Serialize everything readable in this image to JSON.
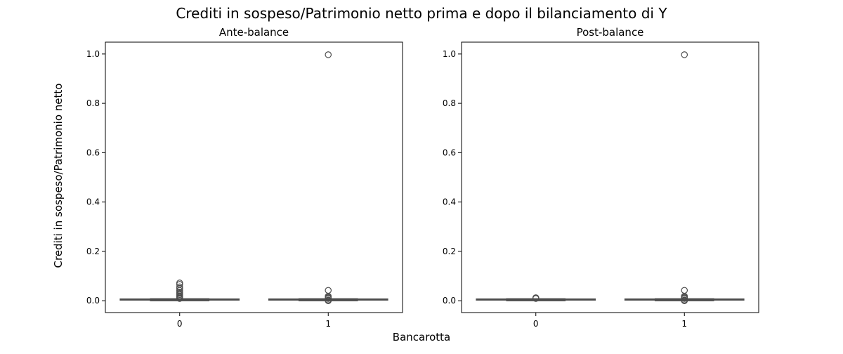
{
  "figure": {
    "title": "Crediti in sospeso/Patrimonio netto prima e dopo il bilanciamento di Y",
    "xlabel": "Bancarotta",
    "ylabel": "Crediti in sospeso/Patrimonio netto"
  },
  "chart_data": [
    {
      "type": "box",
      "title": "Ante-balance",
      "xlabel": "Bancarotta",
      "ylabel": "Crediti in sospeso/Patrimonio netto",
      "categories": [
        "0",
        "1"
      ],
      "ylim": [
        -0.048,
        1.048
      ],
      "yticks": [
        0.0,
        0.2,
        0.4,
        0.6,
        0.8,
        1.0
      ],
      "ytick_labels": [
        "0.0",
        "0.2",
        "0.4",
        "0.6",
        "0.8",
        "1.0"
      ],
      "grid": false,
      "boxes": [
        {
          "category": "0",
          "whisker_low": 0.0,
          "q1": 0.005,
          "median": 0.006,
          "q3": 0.007,
          "whisker_high": 0.008,
          "outliers": [
            0.072,
            0.066,
            0.056,
            0.05,
            0.042,
            0.035,
            0.03,
            0.025,
            0.02,
            0.016,
            0.012,
            0.009
          ]
        },
        {
          "category": "1",
          "whisker_low": 0.0,
          "q1": 0.005,
          "median": 0.006,
          "q3": 0.007,
          "whisker_high": 0.008,
          "outliers": [
            0.997,
            0.042,
            0.018,
            0.014,
            0.011,
            0.009,
            0.003,
            0.001,
            0.0
          ]
        }
      ]
    },
    {
      "type": "box",
      "title": "Post-balance",
      "xlabel": "Bancarotta",
      "ylabel": "",
      "categories": [
        "0",
        "1"
      ],
      "ylim": [
        -0.048,
        1.048
      ],
      "yticks": [
        0.0,
        0.2,
        0.4,
        0.6,
        0.8,
        1.0
      ],
      "ytick_labels": [
        "0.0",
        "0.2",
        "0.4",
        "0.6",
        "0.8",
        "1.0"
      ],
      "grid": false,
      "boxes": [
        {
          "category": "0",
          "whisker_low": 0.0,
          "q1": 0.005,
          "median": 0.006,
          "q3": 0.007,
          "whisker_high": 0.008,
          "outliers": [
            0.012,
            0.01,
            0.009
          ]
        },
        {
          "category": "1",
          "whisker_low": 0.0,
          "q1": 0.005,
          "median": 0.006,
          "q3": 0.007,
          "whisker_high": 0.008,
          "outliers": [
            0.997,
            0.042,
            0.018,
            0.014,
            0.011,
            0.009,
            0.003,
            0.001,
            0.0
          ]
        }
      ]
    }
  ],
  "colors": {
    "box_line": "#4d4d4d",
    "box_fill": "#4d4d4d",
    "axes": "#000000",
    "background": "#ffffff"
  }
}
